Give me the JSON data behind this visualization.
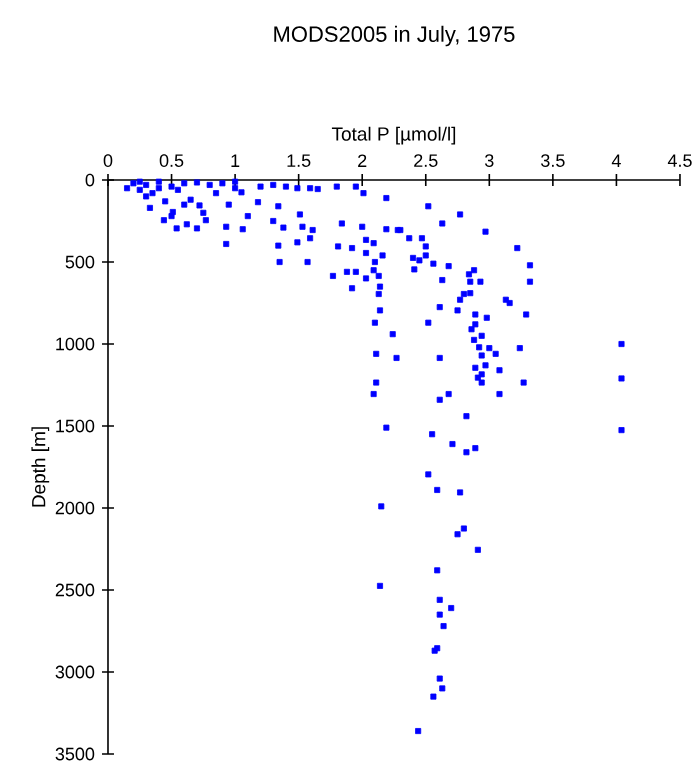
{
  "chart_data": {
    "type": "scatter",
    "title": "MODS2005 in July, 1975",
    "xlabel": "Total P [µmol/l]",
    "ylabel": "Depth [m]",
    "xlim": [
      0,
      4.5
    ],
    "xticks": [
      0,
      0.5,
      1,
      1.5,
      2,
      2.5,
      3,
      3.5,
      4,
      4.5
    ],
    "ylim": [
      3500,
      0
    ],
    "yticks": [
      0,
      500,
      1000,
      1500,
      2000,
      2500,
      3000,
      3500
    ],
    "marker": "square",
    "series": [
      {
        "color": "#0000ff",
        "x": [
          0.15,
          0.25,
          0.3,
          0.33,
          0.44,
          0.54,
          0.7,
          0.62,
          0.51,
          0.72,
          0.77,
          0.93,
          0.93,
          1.06,
          1.1,
          1.05,
          1.18,
          1.34,
          1.3,
          1.38,
          1.34,
          1.35,
          1.51,
          1.53,
          1.49,
          1.59,
          1.61,
          1.57,
          1.49,
          1.59,
          1.65,
          1.8,
          1.84,
          2.0,
          1.95,
          2.01,
          2.19,
          2.19,
          2.28,
          1.81,
          1.92,
          2.03,
          2.09,
          2.03,
          2.1,
          2.16,
          1.77,
          1.88,
          1.95,
          1.92,
          2.03,
          2.09,
          2.13,
          2.14,
          2.13,
          2.14,
          2.1,
          2.24,
          2.11,
          2.27,
          2.11,
          2.09,
          2.19,
          0.2,
          0.3,
          0.4,
          0.5,
          0.6,
          0.7,
          0.8,
          0.9,
          1.0,
          1.2,
          0.35,
          0.45,
          0.55,
          0.65,
          0.85,
          0.75,
          0.5,
          0.25,
          0.6,
          0.95,
          0.4,
          1.3,
          1.4,
          1.0,
          2.52,
          2.77,
          2.63,
          2.97,
          2.3,
          2.37,
          2.47,
          2.5,
          3.22,
          3.32,
          3.32,
          3.29,
          3.24,
          3.27,
          3.08,
          3.13,
          3.16,
          2.4,
          2.45,
          2.5,
          2.56,
          2.68,
          2.63,
          2.41,
          2.88,
          2.84,
          2.93,
          2.85,
          2.8,
          2.85,
          2.77,
          2.61,
          2.75,
          2.89,
          2.98,
          2.89,
          2.52,
          2.86,
          2.88,
          2.94,
          2.92,
          3.0,
          3.05,
          2.94,
          2.97,
          2.89,
          2.94,
          2.91,
          2.94,
          2.61,
          3.08,
          2.68,
          2.61,
          2.82,
          2.55,
          2.71,
          2.82,
          2.89,
          2.52,
          2.59,
          2.77,
          4.04,
          4.04,
          4.04,
          2.15,
          2.8,
          2.75,
          2.91,
          2.59,
          2.14,
          2.61,
          2.7,
          2.61,
          2.64,
          2.59,
          2.57,
          2.61,
          2.63,
          2.56,
          2.44
        ],
        "values": [
          50,
          10,
          100,
          170,
          245,
          295,
          295,
          270,
          195,
          155,
          245,
          285,
          390,
          300,
          220,
          75,
          135,
          160,
          250,
          290,
          400,
          500,
          210,
          285,
          380,
          355,
          305,
          500,
          50,
          50,
          55,
          40,
          265,
          285,
          40,
          80,
          110,
          300,
          305,
          405,
          415,
          365,
          385,
          445,
          500,
          460,
          585,
          560,
          560,
          660,
          600,
          550,
          585,
          650,
          695,
          795,
          870,
          940,
          1060,
          1085,
          1235,
          1305,
          1510,
          20,
          30,
          10,
          40,
          20,
          15,
          30,
          20,
          10,
          40,
          80,
          130,
          60,
          120,
          80,
          200,
          220,
          60,
          150,
          150,
          50,
          30,
          40,
          50,
          160,
          210,
          265,
          315,
          305,
          355,
          355,
          405,
          415,
          520,
          620,
          820,
          1025,
          1235,
          1160,
          730,
          750,
          475,
          490,
          460,
          510,
          525,
          610,
          545,
          550,
          575,
          620,
          620,
          695,
          690,
          730,
          775,
          795,
          820,
          840,
          880,
          870,
          910,
          975,
          950,
          1020,
          1025,
          1060,
          1070,
          1130,
          1145,
          1185,
          1205,
          1235,
          1085,
          1305,
          1305,
          1340,
          1440,
          1550,
          1610,
          1660,
          1635,
          1795,
          1890,
          1905,
          1000,
          1210,
          1525,
          1990,
          2125,
          2160,
          2255,
          2380,
          2475,
          2560,
          2610,
          2650,
          2720,
          2855,
          2870,
          3040,
          3100,
          3150,
          3360
        ]
      }
    ]
  }
}
